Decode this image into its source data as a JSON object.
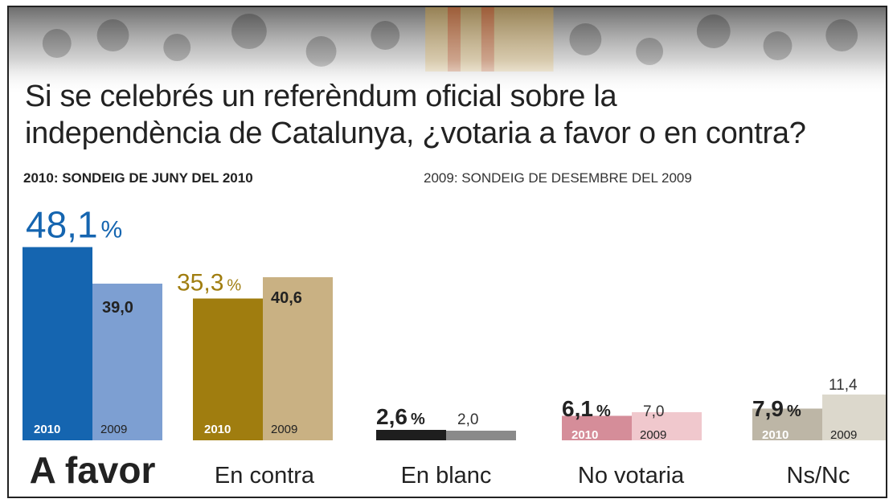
{
  "title": {
    "line1": "Si se celebrés un referèndum oficial sobre la",
    "line2": "independència de Catalunya, ¿votaria a favor o en contra?"
  },
  "subtitles": {
    "left": "2010: SONDEIG DE JUNY DEL 2010",
    "right": "2009: SONDEIG DE DESEMBRE DEL 2009"
  },
  "colors": {
    "a_favor": {
      "y2010": "#1565b0",
      "y2009": "#7d9fd2",
      "label": "#1565b0"
    },
    "en_contra": {
      "y2010": "#a07d0f",
      "y2009": "#c9b183",
      "label": "#a07d0f"
    },
    "en_blanc": {
      "y2010": "#1e1e1e",
      "y2009": "#8a8a8a"
    },
    "no_votaria": {
      "y2010": "#d58d99",
      "y2009": "#f0c8cd"
    },
    "ns_nc": {
      "y2010": "#bdb6a6",
      "y2009": "#dcd8cc"
    },
    "text_dark": "#222222",
    "text_grey": "#555555"
  },
  "chart_data": {
    "type": "bar",
    "categories": [
      "A favor",
      "En contra",
      "En blanc",
      "No votaria",
      "Ns/Nc"
    ],
    "series": [
      {
        "name": "2010",
        "values": [
          48.1,
          35.3,
          2.6,
          6.1,
          7.9
        ]
      },
      {
        "name": "2009",
        "values": [
          39.0,
          40.6,
          2.0,
          7.0,
          11.4
        ]
      }
    ],
    "labels_2010": [
      "48,1",
      "35,3",
      "2,6",
      "6,1",
      "7,9"
    ],
    "labels_2009": [
      "39,0",
      "40,6",
      "2,0",
      "7,0",
      "11,4"
    ],
    "percent_sign": "%",
    "bar_tag_2010": "2010",
    "bar_tag_2009": "2009",
    "ylim": [
      0,
      50
    ],
    "grid": false
  }
}
